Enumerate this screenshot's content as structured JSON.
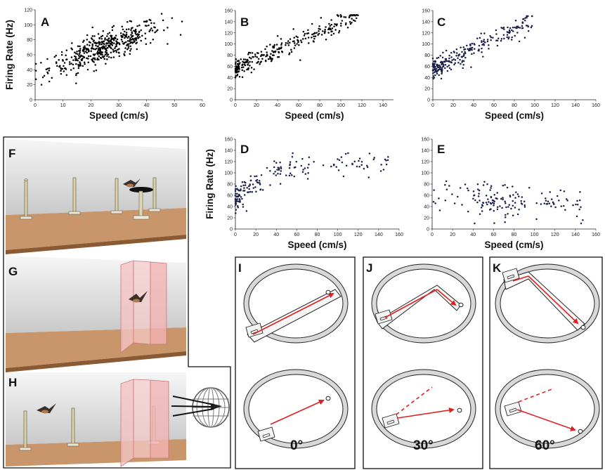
{
  "chart_data": [
    {
      "type": "scatter",
      "panel": "A",
      "xlabel": "Speed (cm/s)",
      "ylabel": "Firing Rate (Hz)",
      "xlim": [
        0,
        60
      ],
      "ylim": [
        0,
        120
      ],
      "xticks": [
        0,
        10,
        20,
        30,
        40,
        50,
        60
      ],
      "yticks": [
        0,
        20,
        40,
        60,
        80,
        100,
        120
      ],
      "points": []
    },
    {
      "type": "scatter",
      "panel": "B",
      "xlabel": "Speed (cm/s)",
      "ylabel": "",
      "xlim": [
        0,
        150
      ],
      "ylim": [
        0,
        160
      ],
      "xticks": [
        0,
        20,
        40,
        60,
        80,
        100,
        120,
        140
      ],
      "yticks": [
        0,
        20,
        40,
        60,
        80,
        100,
        120,
        140,
        160
      ],
      "points": []
    },
    {
      "type": "scatter",
      "panel": "C",
      "xlabel": "Speed (cm/s)",
      "ylabel": "",
      "xlim": [
        0,
        160
      ],
      "ylim": [
        0,
        160
      ],
      "xticks": [
        0,
        20,
        40,
        60,
        80,
        100,
        120,
        140,
        160
      ],
      "yticks": [
        0,
        20,
        40,
        60,
        80,
        100,
        120,
        140,
        160
      ],
      "points": []
    },
    {
      "type": "scatter",
      "panel": "D",
      "xlabel": "Speed (cm/s)",
      "ylabel": "Firing Rate (Hz)",
      "xlim": [
        0,
        160
      ],
      "ylim": [
        0,
        160
      ],
      "xticks": [
        0,
        20,
        40,
        60,
        80,
        100,
        120,
        140,
        160
      ],
      "yticks": [
        0,
        20,
        40,
        60,
        80,
        100,
        120,
        140,
        160
      ],
      "points": []
    },
    {
      "type": "scatter",
      "panel": "E",
      "xlabel": "Speed (cm/s)",
      "ylabel": "",
      "xlim": [
        0,
        160
      ],
      "ylim": [
        0,
        160
      ],
      "xticks": [
        0,
        20,
        40,
        60,
        80,
        100,
        120,
        140,
        160
      ],
      "yticks": [
        0,
        20,
        40,
        60,
        80,
        100,
        120,
        140,
        160
      ],
      "points": []
    }
  ],
  "panels": {
    "F": "F",
    "G": "G",
    "H": "H",
    "I": "I",
    "J": "J",
    "K": "K"
  },
  "angles": {
    "I": "0°",
    "J": "30°",
    "K": "60°"
  },
  "colors": {
    "arrow": "#e02020",
    "wall": "#f2b8b8",
    "floor": "#c89468",
    "sky_top": "#eeeeee",
    "sky_bottom": "#cfcfcf",
    "dots_A": "#000000",
    "dots_blue": "#1a1f4a"
  }
}
